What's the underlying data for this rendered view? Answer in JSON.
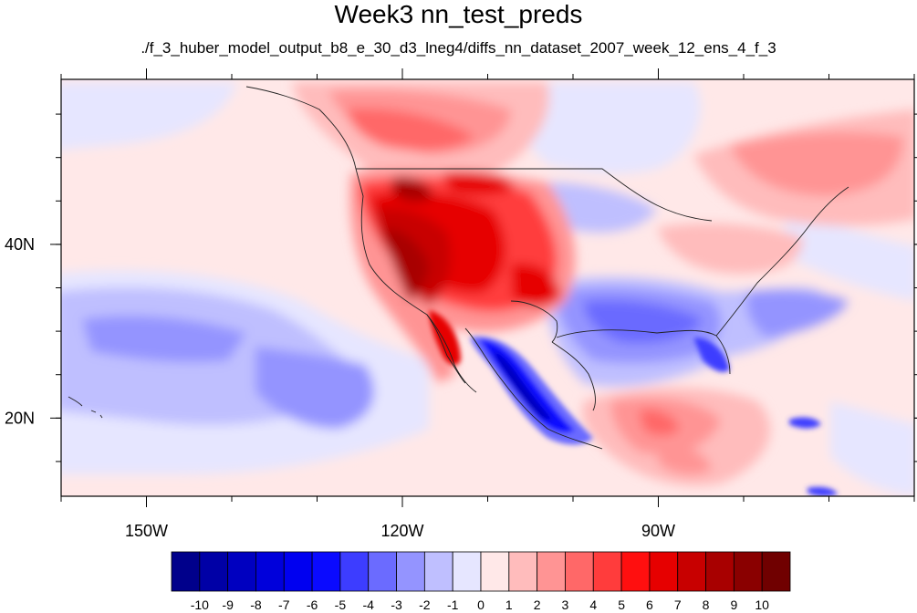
{
  "title": "Week3 nn_test_preds",
  "subtitle": "./f_3_huber_model_output_b8_e_30_d3_lneg4/diffs_nn_dataset_2007_week_12_ens_4_f_3",
  "map": {
    "projection": "cylindrical equidistant",
    "extent": {
      "lon_min": -160,
      "lon_max": -60,
      "lat_min": 11,
      "lat_max": 59
    },
    "lon_ticks": [
      {
        "value": -150,
        "label": "150W"
      },
      {
        "value": -120,
        "label": "120W"
      },
      {
        "value": -90,
        "label": "90W"
      }
    ],
    "lat_ticks": [
      {
        "value": 40,
        "label": "40N"
      },
      {
        "value": 20,
        "label": "20N"
      }
    ]
  },
  "colorbar": {
    "labels": [
      "-10",
      "-9",
      "-8",
      "-7",
      "-6",
      "-5",
      "-4",
      "-3",
      "-2",
      "-1",
      "0",
      "1",
      "2",
      "3",
      "4",
      "5",
      "6",
      "7",
      "8",
      "9",
      "10"
    ],
    "colors": [
      "#00008b",
      "#0000a6",
      "#0000c0",
      "#0000db",
      "#0000f0",
      "#0a0aff",
      "#3d3dff",
      "#6b6bff",
      "#9494ff",
      "#bfbfff",
      "#e6e6ff",
      "#ffe8e8",
      "#ffbcbc",
      "#ff9494",
      "#ff6868",
      "#ff3c3c",
      "#ff0f0f",
      "#e60000",
      "#c80000",
      "#a80000",
      "#8a0000",
      "#700000"
    ]
  }
}
